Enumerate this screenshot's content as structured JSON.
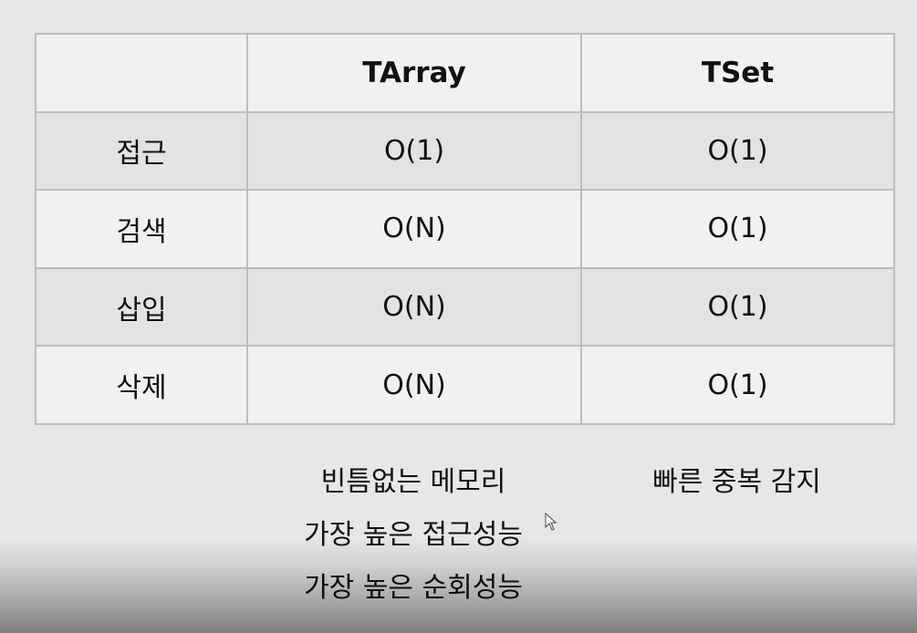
{
  "table": {
    "headers": [
      "",
      "TArray",
      "TSet"
    ],
    "rows": [
      {
        "label": "접근",
        "tarray": "O(1)",
        "tset": "O(1)"
      },
      {
        "label": "검색",
        "tarray": "O(N)",
        "tset": "O(1)"
      },
      {
        "label": "삽입",
        "tarray": "O(N)",
        "tset": "O(1)"
      },
      {
        "label": "삭제",
        "tarray": "O(N)",
        "tset": "O(1)"
      }
    ]
  },
  "notes": {
    "tarray": [
      "빈틈없는 메모리",
      "가장 높은 접근성능",
      "가장 높은 순회성능"
    ],
    "tset": [
      "빠른 중복 감지"
    ]
  },
  "icons": {
    "cursor": "mouse-pointer-icon"
  },
  "colors": {
    "background": "#e7e7e7",
    "row_light": "#f1f1f1",
    "row_dark": "#e3e3e3",
    "border": "#bdbdbd"
  }
}
